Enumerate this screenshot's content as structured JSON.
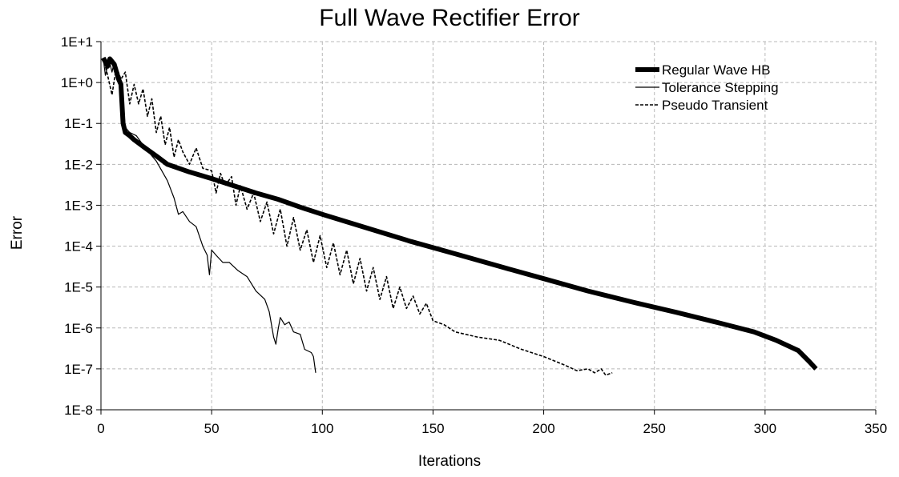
{
  "chart_data": {
    "type": "line",
    "title": "Full Wave Rectifier Error",
    "xlabel": "Iterations",
    "ylabel": "Error",
    "xlim": [
      0,
      350
    ],
    "ylim": [
      1e-08,
      10
    ],
    "yscale": "log",
    "xticks": [
      0,
      50,
      100,
      150,
      200,
      250,
      300,
      350
    ],
    "xtick_labels": [
      "0",
      "50",
      "100",
      "150",
      "200",
      "250",
      "300",
      "350"
    ],
    "yticks": [
      10,
      1,
      0.1,
      0.01,
      0.001,
      0.0001,
      1e-05,
      1e-06,
      1e-07,
      1e-08
    ],
    "ytick_labels": [
      "1E+1",
      "1E+0",
      "1E-1",
      "1E-2",
      "1E-3",
      "1E-4",
      "1E-5",
      "1E-6",
      "1E-7",
      "1E-8"
    ],
    "grid": true,
    "legend_position": "top-right",
    "series": [
      {
        "name": "Regular Wave HB",
        "style": "thick-solid",
        "color": "#000000",
        "points": [
          [
            1,
            4
          ],
          [
            2,
            3.2
          ],
          [
            3,
            2.5
          ],
          [
            4,
            3.8
          ],
          [
            6,
            2.8
          ],
          [
            8,
            1.2
          ],
          [
            9,
            0.9
          ],
          [
            10,
            0.1
          ],
          [
            11,
            0.06
          ],
          [
            13,
            0.05
          ],
          [
            15,
            0.04
          ],
          [
            20,
            0.025
          ],
          [
            25,
            0.016
          ],
          [
            30,
            0.01
          ],
          [
            40,
            0.0065
          ],
          [
            50,
            0.0045
          ],
          [
            60,
            0.003
          ],
          [
            70,
            0.002
          ],
          [
            80,
            0.0014
          ],
          [
            90,
            0.0009
          ],
          [
            100,
            0.0006
          ],
          [
            120,
            0.00028
          ],
          [
            140,
            0.00013
          ],
          [
            160,
            6.5e-05
          ],
          [
            180,
            3.2e-05
          ],
          [
            200,
            1.6e-05
          ],
          [
            220,
            8e-06
          ],
          [
            240,
            4.3e-06
          ],
          [
            260,
            2.4e-06
          ],
          [
            280,
            1.3e-06
          ],
          [
            295,
            8e-07
          ],
          [
            305,
            5e-07
          ],
          [
            315,
            2.8e-07
          ],
          [
            320,
            1.5e-07
          ],
          [
            323,
            1e-07
          ]
        ]
      },
      {
        "name": "Tolerance Stepping",
        "style": "thin-solid",
        "color": "#000000",
        "points": [
          [
            1,
            4
          ],
          [
            2,
            1.5
          ],
          [
            3,
            2.5
          ],
          [
            4,
            3
          ],
          [
            5,
            1.8
          ],
          [
            6,
            3.2
          ],
          [
            8,
            1.5
          ],
          [
            10,
            0.3
          ],
          [
            11,
            0.08
          ],
          [
            13,
            0.06
          ],
          [
            16,
            0.05
          ],
          [
            20,
            0.025
          ],
          [
            25,
            0.012
          ],
          [
            30,
            0.004
          ],
          [
            33,
            0.0015
          ],
          [
            35,
            0.0006
          ],
          [
            37,
            0.0007
          ],
          [
            40,
            0.0004
          ],
          [
            43,
            0.0003
          ],
          [
            46,
            0.0001
          ],
          [
            48,
            6e-05
          ],
          [
            49,
            2e-05
          ],
          [
            50,
            8e-05
          ],
          [
            52,
            6e-05
          ],
          [
            55,
            4e-05
          ],
          [
            58,
            4e-05
          ],
          [
            62,
            2.5e-05
          ],
          [
            66,
            1.8e-05
          ],
          [
            70,
            8e-06
          ],
          [
            74,
            5e-06
          ],
          [
            76,
            2.5e-06
          ],
          [
            78,
            6e-07
          ],
          [
            79,
            4e-07
          ],
          [
            80,
            9e-07
          ],
          [
            81,
            1.8e-06
          ],
          [
            83,
            1.2e-06
          ],
          [
            85,
            1.4e-06
          ],
          [
            87,
            8e-07
          ],
          [
            90,
            7e-07
          ],
          [
            92,
            3e-07
          ],
          [
            95,
            2.5e-07
          ],
          [
            96,
            2e-07
          ],
          [
            97,
            8e-08
          ]
        ]
      },
      {
        "name": "Pseudo Transient",
        "style": "dashed",
        "color": "#000000",
        "points": [
          [
            1,
            4
          ],
          [
            3,
            1.5
          ],
          [
            5,
            0.5
          ],
          [
            7,
            2.5
          ],
          [
            9,
            1.2
          ],
          [
            11,
            1.8
          ],
          [
            13,
            0.3
          ],
          [
            15,
            0.9
          ],
          [
            17,
            0.3
          ],
          [
            19,
            0.7
          ],
          [
            21,
            0.15
          ],
          [
            23,
            0.4
          ],
          [
            25,
            0.06
          ],
          [
            27,
            0.15
          ],
          [
            29,
            0.03
          ],
          [
            31,
            0.08
          ],
          [
            33,
            0.015
          ],
          [
            35,
            0.04
          ],
          [
            37,
            0.02
          ],
          [
            40,
            0.01
          ],
          [
            43,
            0.025
          ],
          [
            46,
            0.008
          ],
          [
            50,
            0.007
          ],
          [
            52,
            0.002
          ],
          [
            54,
            0.006
          ],
          [
            56,
            0.003
          ],
          [
            59,
            0.005
          ],
          [
            61,
            0.001
          ],
          [
            63,
            0.003
          ],
          [
            66,
            0.0008
          ],
          [
            69,
            0.002
          ],
          [
            72,
            0.0004
          ],
          [
            75,
            0.0012
          ],
          [
            78,
            0.0002
          ],
          [
            81,
            0.0008
          ],
          [
            84,
            0.0001
          ],
          [
            87,
            0.0005
          ],
          [
            90,
            8e-05
          ],
          [
            93,
            0.00025
          ],
          [
            96,
            4e-05
          ],
          [
            99,
            0.00018
          ],
          [
            102,
            3e-05
          ],
          [
            105,
            0.00012
          ],
          [
            108,
            2e-05
          ],
          [
            111,
            8e-05
          ],
          [
            114,
            1.2e-05
          ],
          [
            117,
            5e-05
          ],
          [
            120,
            8e-06
          ],
          [
            123,
            3e-05
          ],
          [
            126,
            5e-06
          ],
          [
            129,
            1.8e-05
          ],
          [
            132,
            3e-06
          ],
          [
            135,
            1e-05
          ],
          [
            138,
            3e-06
          ],
          [
            141,
            6e-06
          ],
          [
            144,
            2.2e-06
          ],
          [
            147,
            4e-06
          ],
          [
            150,
            1.5e-06
          ],
          [
            155,
            1.2e-06
          ],
          [
            160,
            8e-07
          ],
          [
            170,
            6e-07
          ],
          [
            180,
            5e-07
          ],
          [
            190,
            3e-07
          ],
          [
            200,
            2e-07
          ],
          [
            210,
            1.2e-07
          ],
          [
            215,
            9e-08
          ],
          [
            220,
            1e-07
          ],
          [
            223,
            8e-08
          ],
          [
            226,
            1e-07
          ],
          [
            228,
            7e-08
          ],
          [
            231,
            8e-08
          ]
        ]
      }
    ]
  }
}
